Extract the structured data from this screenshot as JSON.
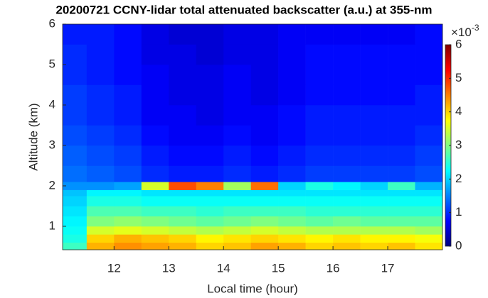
{
  "chart_data": {
    "type": "heatmap",
    "title": "20200721 CCNY-lidar total attenuated backscatter (a.u.) at 355-nm",
    "x_label": "Local time (hour)",
    "y_label": "Altitude (km)",
    "colormap": "jet",
    "colorbar_base": "×10",
    "colorbar_exponent": "-3",
    "xlim": [
      11.06,
      18.0
    ],
    "ylim": [
      0.42,
      6
    ],
    "xticks": [
      12,
      13,
      14,
      15,
      16,
      17
    ],
    "yticks": [
      1,
      2,
      3,
      4,
      5,
      6
    ],
    "clim": [
      0,
      6
    ],
    "cticks": [
      0,
      1,
      2,
      3,
      4,
      5,
      6
    ],
    "xbins": [
      11.06,
      11.5,
      12,
      12.5,
      13,
      13.5,
      14,
      14.5,
      15,
      15.5,
      16,
      16.5,
      17,
      17.5,
      18.0
    ],
    "ybins": [
      0.42,
      0.6,
      0.8,
      1.0,
      1.25,
      1.5,
      1.75,
      1.9,
      2.1,
      2.5,
      3,
      3.5,
      4,
      4.5,
      5,
      5.5,
      6
    ],
    "values": [
      [
        2.6,
        4.2,
        4.4,
        4.3,
        4.2,
        4.0,
        4.1,
        4.3,
        4.2,
        4.0,
        4.1,
        4.0,
        4.1,
        3.9
      ],
      [
        2.4,
        4.0,
        4.2,
        4.1,
        4.0,
        3.8,
        3.9,
        4.0,
        3.9,
        3.8,
        3.9,
        3.8,
        3.8,
        3.7
      ],
      [
        2.3,
        3.5,
        3.6,
        3.5,
        3.4,
        3.3,
        3.4,
        3.5,
        3.4,
        3.3,
        3.3,
        3.3,
        3.3,
        3.2
      ],
      [
        2.2,
        3.0,
        3.1,
        3.0,
        2.9,
        2.8,
        2.9,
        3.0,
        2.9,
        2.8,
        2.9,
        2.8,
        2.8,
        2.8
      ],
      [
        2.1,
        2.7,
        2.7,
        2.6,
        2.6,
        2.5,
        2.6,
        2.6,
        2.6,
        2.5,
        2.5,
        2.5,
        2.5,
        2.5
      ],
      [
        2.0,
        2.4,
        2.4,
        2.3,
        2.3,
        2.3,
        2.3,
        2.3,
        2.3,
        2.3,
        2.3,
        2.3,
        2.3,
        2.3
      ],
      [
        1.9,
        2.2,
        2.2,
        2.1,
        2.1,
        2.1,
        2.1,
        2.1,
        2.1,
        2.1,
        2.1,
        2.1,
        2.1,
        2.1
      ],
      [
        1.6,
        1.6,
        1.7,
        3.5,
        4.8,
        4.5,
        3.2,
        4.6,
        2.0,
        2.4,
        2.2,
        2.0,
        2.6,
        1.8
      ],
      [
        1.4,
        1.3,
        1.2,
        1.0,
        0.9,
        0.9,
        1.0,
        0.9,
        1.0,
        1.1,
        1.1,
        1.1,
        1.1,
        1.2
      ],
      [
        1.3,
        1.2,
        1.1,
        0.9,
        0.8,
        0.8,
        0.9,
        0.8,
        0.9,
        1.0,
        1.0,
        1.0,
        1.0,
        1.1
      ],
      [
        1.2,
        1.1,
        1.0,
        0.8,
        0.7,
        0.7,
        0.8,
        0.7,
        0.8,
        0.9,
        0.9,
        0.9,
        0.9,
        1.0
      ],
      [
        1.1,
        1.0,
        0.9,
        0.7,
        0.7,
        0.6,
        0.7,
        0.7,
        0.8,
        0.9,
        0.9,
        0.9,
        0.9,
        0.9
      ],
      [
        1.1,
        1.0,
        0.9,
        0.7,
        0.6,
        0.6,
        0.7,
        0.6,
        0.7,
        0.8,
        0.8,
        0.8,
        0.8,
        0.9
      ],
      [
        1.0,
        0.9,
        0.8,
        0.7,
        0.6,
        0.6,
        0.7,
        0.6,
        0.7,
        0.8,
        0.8,
        0.8,
        0.8,
        0.8
      ],
      [
        1.0,
        0.9,
        0.8,
        0.6,
        0.6,
        0.5,
        0.6,
        0.6,
        0.7,
        0.8,
        0.8,
        0.8,
        0.8,
        0.8
      ],
      [
        0.9,
        0.9,
        0.8,
        0.6,
        0.5,
        0.5,
        0.6,
        0.6,
        0.7,
        0.7,
        0.7,
        0.7,
        0.7,
        0.8
      ]
    ]
  }
}
